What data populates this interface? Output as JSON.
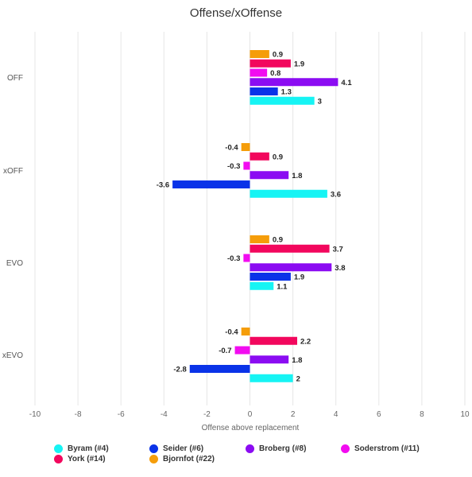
{
  "chart_data": {
    "type": "bar",
    "orientation": "horizontal",
    "title": "Offense/xOffense",
    "xlabel": "Offense above replacement",
    "ylabel": "",
    "xlim": [
      -10,
      10
    ],
    "xticks": [
      -10,
      -8,
      -6,
      -4,
      -2,
      0,
      2,
      4,
      6,
      8,
      10
    ],
    "grid": true,
    "legend_position": "bottom",
    "categories": [
      "OFF",
      "xOFF",
      "EVO",
      "xEVO"
    ],
    "series": [
      {
        "name": "Byram (#4)",
        "color": "#16f4f4",
        "values": [
          3,
          3.6,
          1.1,
          2
        ]
      },
      {
        "name": "Seider (#6)",
        "color": "#0a33e8",
        "values": [
          1.3,
          -3.6,
          1.9,
          -2.8
        ]
      },
      {
        "name": "Broberg (#8)",
        "color": "#8b0cf2",
        "values": [
          4.1,
          1.8,
          3.8,
          1.8
        ]
      },
      {
        "name": "Soderstrom (#11)",
        "color": "#f20cf0",
        "values": [
          0.8,
          -0.3,
          -0.3,
          -0.7
        ]
      },
      {
        "name": "York (#14)",
        "color": "#f2075d",
        "values": [
          1.9,
          0.9,
          3.7,
          2.2
        ]
      },
      {
        "name": "Bjornfot (#22)",
        "color": "#f59d0a",
        "values": [
          0.9,
          -0.4,
          0.9,
          -0.4
        ]
      }
    ]
  },
  "legend": {
    "items": [
      {
        "label": "Byram (#4)",
        "color": "#16f4f4"
      },
      {
        "label": "Seider (#6)",
        "color": "#0a33e8"
      },
      {
        "label": "Broberg (#8)",
        "color": "#8b0cf2"
      },
      {
        "label": "Soderstrom (#11)",
        "color": "#f20cf0"
      },
      {
        "label": "York (#14)",
        "color": "#f2075d"
      },
      {
        "label": "Bjornfot (#22)",
        "color": "#f59d0a"
      }
    ]
  }
}
